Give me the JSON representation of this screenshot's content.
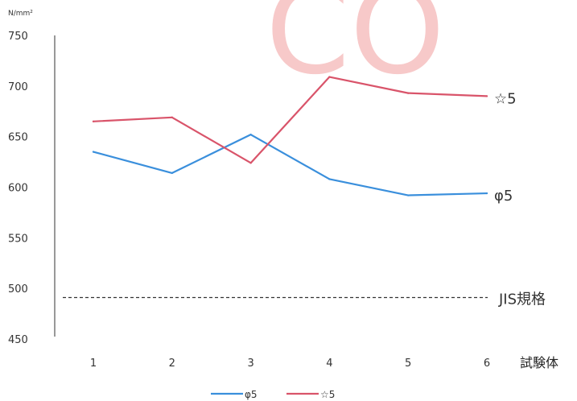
{
  "watermark": "CO",
  "chart_data": {
    "type": "line",
    "unit": "N/mm²",
    "xlabel": "試験体",
    "categories": [
      "1",
      "2",
      "3",
      "4",
      "5",
      "6"
    ],
    "ylim": [
      450,
      750
    ],
    "yticks": [
      "750",
      "700",
      "650",
      "600",
      "550",
      "500",
      "450"
    ],
    "series": [
      {
        "name": "φ5",
        "color": "#3a8fdc",
        "values": [
          635,
          614,
          652,
          608,
          592,
          594
        ]
      },
      {
        "name": "☆5",
        "color": "#d9546a",
        "values": [
          665,
          669,
          624,
          709,
          693,
          690
        ]
      }
    ],
    "reference_line": {
      "label": "JIS規格",
      "value": 491,
      "color": "#333333"
    }
  }
}
